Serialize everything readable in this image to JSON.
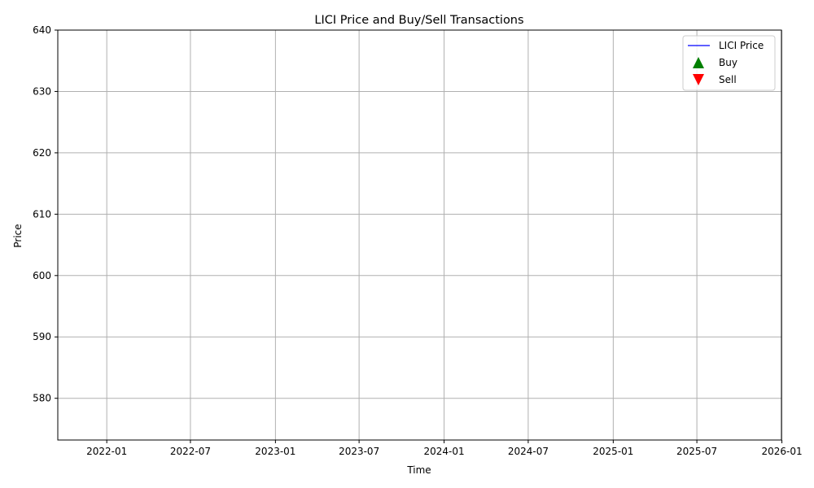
{
  "chart_data": {
    "type": "line",
    "title": "LICI Price and Buy/Sell Transactions",
    "xlabel": "Time",
    "ylabel": "Price",
    "x_axis_type": "date",
    "xlim": [
      "2021-09-17",
      "2025-12-31"
    ],
    "ylim": [
      573.2,
      640
    ],
    "x_ticks": [
      "2022-01",
      "2022-07",
      "2023-01",
      "2023-07",
      "2024-01",
      "2024-07",
      "2025-01",
      "2025-07",
      "2026-01"
    ],
    "y_ticks": [
      580,
      590,
      600,
      610,
      620,
      630,
      640
    ],
    "grid": true,
    "legend_position": "top-right",
    "series": [
      {
        "name": "LICI Price",
        "kind": "line",
        "color": "#0000ff",
        "values": []
      },
      {
        "name": "Buy",
        "kind": "marker",
        "marker": "triangle-up",
        "color": "#008000",
        "values": []
      },
      {
        "name": "Sell",
        "kind": "marker",
        "marker": "triangle-down",
        "color": "#ff0000",
        "values": []
      }
    ]
  }
}
